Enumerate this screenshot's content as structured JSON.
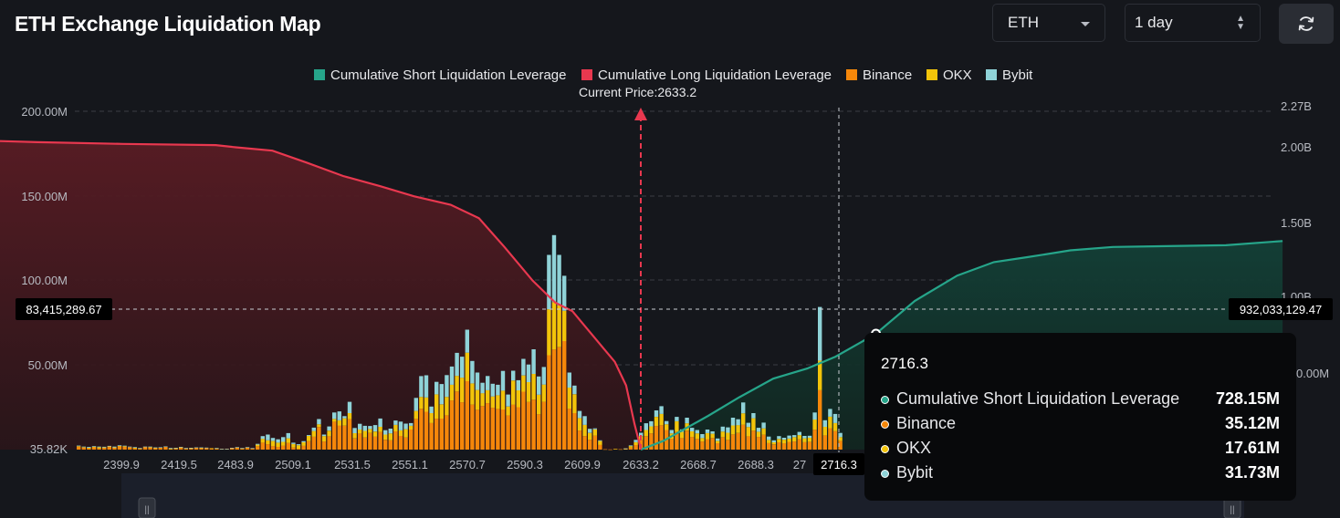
{
  "header": {
    "title": "ETH Exchange Liquidation Map",
    "coin": "ETH",
    "range": "1 day"
  },
  "colors": {
    "short": "#26a58a",
    "long": "#e8384f",
    "binance": "#f5870a",
    "okx": "#f2c40a",
    "bybit": "#8fd3d8",
    "bg": "#15171c"
  },
  "icons": {
    "coin_dropdown": "caret-down-icon",
    "range_stepper": "up-down-icon",
    "refresh": "refresh-icon"
  },
  "chart_data": {
    "type": "bar",
    "title": "ETH Exchange Liquidation Map",
    "legend": {
      "position": "top-center",
      "items": [
        {
          "label": "Cumulative Short Liquidation Leverage",
          "color": "#26a58a"
        },
        {
          "label": "Cumulative Long Liquidation Leverage",
          "color": "#e8384f"
        },
        {
          "label": "Binance",
          "color": "#f5870a"
        },
        {
          "label": "OKX",
          "color": "#f2c40a"
        },
        {
          "label": "Bybit",
          "color": "#8fd3d8"
        }
      ]
    },
    "current_price_label": "Current Price:2633.2",
    "current_price": 2633.2,
    "x_ticks": [
      "2399.9",
      "2419.5",
      "2483.9",
      "2509.1",
      "2531.5",
      "2551.1",
      "2570.7",
      "2590.3",
      "2609.9",
      "2633.2",
      "2668.7",
      "2688.3",
      "27",
      "2716.3"
    ],
    "y_left_ticks": [
      "200.00M",
      "150.00M",
      "100.00M",
      "50.00M",
      "35.82K"
    ],
    "y_left_range": [
      35820,
      200000000
    ],
    "y_right_ticks": [
      "2.27B",
      "2.00B",
      "1.50B",
      "1.00B",
      "0.00M"
    ],
    "y_right_range": [
      0,
      2270000000
    ],
    "crosshair": {
      "left_label": "83,415,289.67",
      "right_label": "932,033,129.47",
      "x_label": "2716.3"
    },
    "grid": "dashed horizontal",
    "bars": {
      "binance": [
        1.8,
        1.2,
        0.9,
        1.4,
        0.8,
        1.0,
        1.9,
        1.2,
        2.1,
        1.9,
        1.5,
        1.0,
        0.7,
        1.7,
        1.4,
        1.0,
        1.2,
        1.6,
        0.5,
        0.8,
        1.4,
        0.7,
        0.8,
        1.2,
        1.0,
        1.0,
        0.7,
        0.7,
        0.4,
        0.4,
        1.0,
        1.3,
        0.7,
        1.3,
        0.6,
        2.0,
        4.1,
        3.2,
        2.1,
        1.6,
        2.3,
        3.9,
        1.2,
        0.5,
        2.2,
        5.0,
        7.6,
        13.3,
        4.8,
        7.9,
        16.5,
        14.3,
        14.1,
        18.0,
        6.6,
        9.5,
        7.1,
        9.8,
        7.7,
        10.4,
        5.8,
        5.5,
        10.8,
        8.1,
        7.2,
        11.9,
        18.2,
        24.1,
        22.4,
        15.7,
        18.3,
        18.4,
        20.3,
        29.1,
        34.4,
        28.0,
        40.5,
        26.6,
        23.6,
        25.8,
        27.5,
        24.8,
        24.1,
        23.8,
        20.2,
        26.6,
        25.1,
        34.3,
        28.2,
        29.6,
        20.9,
        28.3,
        55.9,
        59.3,
        60.6,
        64.3,
        24.3,
        21.6,
        11.3,
        8.0,
        5.9,
        8.2,
        2.8,
        0.2,
        0.1,
        0.3,
        0.2,
        0.5,
        1.2,
        2.7,
        5.5,
        8.0,
        9.6,
        14.0,
        14.4,
        11.6,
        6.4,
        10.6,
        6.9,
        11.2,
        7.5,
        6.3,
        4.8,
        6.2,
        6.9,
        3.8,
        7.4,
        5.8,
        9.0,
        9.8,
        14.7,
        7.9,
        11.3,
        7.5,
        8.8,
        3.8,
        3.1,
        4.3,
        3.7,
        4.6,
        4.8,
        6.1,
        4.4,
        4.6,
        11.8,
        35.12,
        8.4,
        12.7,
        10.9,
        5.2
      ],
      "okx": [
        0.3,
        0.4,
        0.2,
        0.3,
        0.6,
        0.3,
        0.2,
        0.1,
        0.1,
        0.1,
        0.0,
        0.1,
        0.1,
        0.0,
        0.1,
        0.1,
        0.0,
        0.0,
        0.1,
        0.1,
        0.1,
        0.1,
        0.1,
        0.0,
        0.1,
        0.0,
        0.1,
        0.1,
        0.0,
        0.0,
        0.0,
        0.0,
        0.1,
        0.0,
        0.0,
        0.9,
        2.3,
        2.3,
        3.0,
        2.5,
        2.3,
        2.8,
        2.1,
        2.1,
        2.1,
        3.1,
        3.4,
        1.7,
        3.2,
        3.3,
        1.7,
        3.0,
        4.4,
        3.6,
        3.1,
        2.4,
        4.0,
        2.4,
        3.0,
        3.1,
        3.1,
        4.1,
        3.8,
        3.3,
        4.9,
        2.2,
        4.7,
        7.1,
        8.5,
        5.9,
        14.4,
        8.4,
        10.9,
        9.3,
        9.3,
        14.6,
        16.9,
        12.6,
        11.7,
        7.6,
        7.7,
        6.7,
        8.1,
        11.1,
        5.3,
        14.3,
        10.0,
        9.6,
        11.8,
        15.2,
        11.6,
        10.2,
        27.2,
        28.0,
        24.8,
        17.9,
        12.4,
        11.2,
        7.4,
        6.6,
        4.0,
        3.8,
        2.3,
        0.0,
        0.0,
        0.1,
        0.0,
        0.1,
        0.9,
        1.7,
        2.5,
        3.6,
        4.2,
        5.4,
        6.7,
        3.4,
        3.2,
        6.2,
        3.6,
        4.4,
        3.3,
        3.3,
        2.1,
        3.6,
        2.5,
        1.4,
        3.3,
        4.2,
        5.3,
        4.7,
        6.8,
        5.5,
        7.3,
        3.1,
        3.8,
        1.9,
        1.2,
        2.0,
        2.2,
        1.9,
        2.6,
        2.5,
        2.3,
        2.4,
        6.0,
        17.61,
        5.1,
        6.8,
        4.8,
        2.2
      ],
      "bybit": [
        0.3,
        0.2,
        0.5,
        0.4,
        0.4,
        0.4,
        0.1,
        0.5,
        0.4,
        0.3,
        0.3,
        0.4,
        0.1,
        0.1,
        0.3,
        0.2,
        0.2,
        0.3,
        0.4,
        0.1,
        0.1,
        0.1,
        0.2,
        0.1,
        0.2,
        0.2,
        0.0,
        0.1,
        0.1,
        0.1,
        0.1,
        0.2,
        0.1,
        0.2,
        0.3,
        0.5,
        1.6,
        3.4,
        1.8,
        2.0,
        2.8,
        3.1,
        0.8,
        0.6,
        0.7,
        0.5,
        2.0,
        3.1,
        0.9,
        2.5,
        3.8,
        5.3,
        1.3,
        6.7,
        3.1,
        3.4,
        3.0,
        1.8,
        3.8,
        4.9,
        2.6,
        2.8,
        2.6,
        5.2,
        3.3,
        1.6,
        7.7,
        12.3,
        13.1,
        3.9,
        7.4,
        12.0,
        12.9,
        10.8,
        13.6,
        12.4,
        13.6,
        13.3,
        10.3,
        6.2,
        8.4,
        7.5,
        6.2,
        11.7,
        7.1,
        5.8,
        6.0,
        9.8,
        10.4,
        14.6,
        10.8,
        10.4,
        32.2,
        39.7,
        29.9,
        20.7,
        8.9,
        5.1,
        4.2,
        5.2,
        2.4,
        0.6,
        0.4,
        0.0,
        0.0,
        0.0,
        0.0,
        0.1,
        0.4,
        1.4,
        2.0,
        4.0,
        3.0,
        3.8,
        4.6,
        1.9,
        2.0,
        2.6,
        1.5,
        3.3,
        2.1,
        2.0,
        2.3,
        2.1,
        1.4,
        1.4,
        2.9,
        3.2,
        4.6,
        3.5,
        6.4,
        2.5,
        3.0,
        2.3,
        3.4,
        2.0,
        1.2,
        1.7,
        1.1,
        1.8,
        1.2,
        1.9,
        1.4,
        1.2,
        4.2,
        31.73,
        3.9,
        4.6,
        5.4,
        2.5
      ]
    },
    "long_cumulative_M": [
      [
        2380,
        185
      ],
      [
        2400,
        183
      ],
      [
        2420,
        182
      ],
      [
        2450,
        181
      ],
      [
        2483,
        180.3
      ],
      [
        2490,
        179
      ],
      [
        2503,
        177
      ],
      [
        2515,
        170
      ],
      [
        2528,
        162
      ],
      [
        2541,
        156
      ],
      [
        2553,
        150
      ],
      [
        2566,
        145
      ],
      [
        2576,
        137
      ],
      [
        2585,
        120
      ],
      [
        2595,
        100
      ],
      [
        2603,
        87
      ],
      [
        2609,
        82
      ],
      [
        2616,
        68
      ],
      [
        2620,
        60
      ],
      [
        2624,
        52
      ],
      [
        2628,
        38
      ],
      [
        2631,
        15
      ],
      [
        2633.2,
        0.5
      ]
    ],
    "short_cumulative_M": [
      [
        2633.2,
        0
      ],
      [
        2641,
        5
      ],
      [
        2657,
        20
      ],
      [
        2668,
        31
      ],
      [
        2680,
        42
      ],
      [
        2692,
        48
      ],
      [
        2702,
        55
      ],
      [
        2716.3,
        68.6
      ],
      [
        2730,
        88
      ],
      [
        2745,
        103
      ],
      [
        2758,
        111
      ],
      [
        2770,
        114
      ],
      [
        2785,
        118
      ],
      [
        2800,
        120
      ],
      [
        2840,
        121
      ],
      [
        2860,
        123.5
      ]
    ]
  }
}
